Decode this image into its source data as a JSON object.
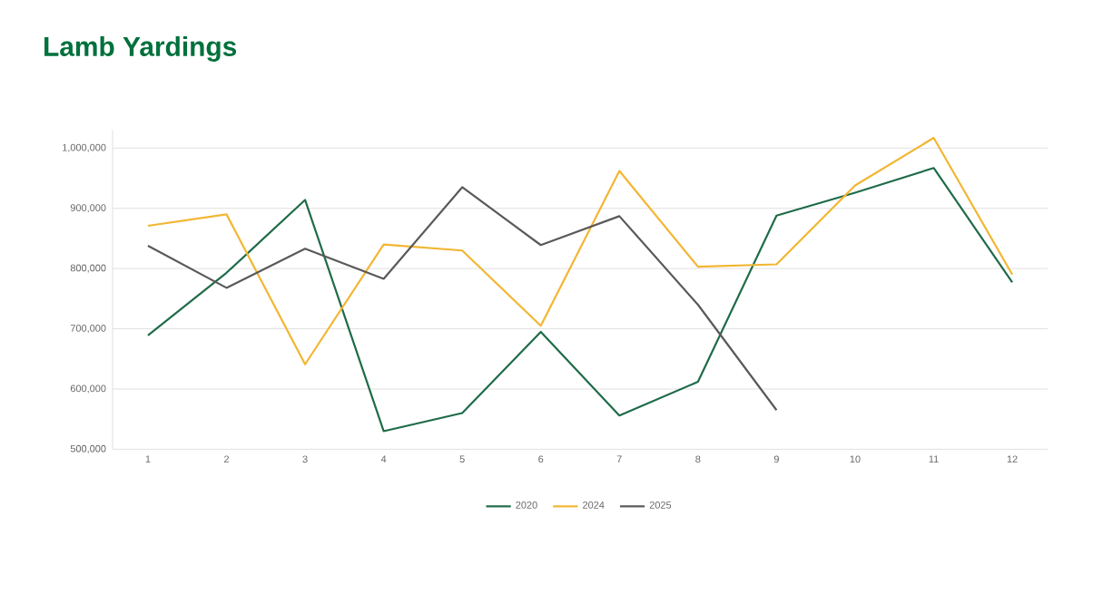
{
  "chart_data": {
    "type": "line",
    "title": "Lamb Yardings",
    "categories": [
      "1",
      "2",
      "3",
      "4",
      "5",
      "6",
      "7",
      "8",
      "9",
      "10",
      "11",
      "12"
    ],
    "series": [
      {
        "name": "2020",
        "color": "#1e6b48",
        "values": [
          689000,
          793000,
          914000,
          530000,
          560000,
          695000,
          556000,
          612000,
          888000,
          926000,
          967000,
          777000
        ]
      },
      {
        "name": "2024",
        "color": "#f2b632",
        "values": [
          871000,
          890000,
          641000,
          840000,
          830000,
          705000,
          962000,
          803000,
          807000,
          938000,
          1017000,
          790000
        ]
      },
      {
        "name": "2025",
        "color": "#595959",
        "values": [
          838000,
          768000,
          833000,
          783000,
          935000,
          839000,
          887000,
          740000,
          565000,
          null,
          null,
          null
        ]
      }
    ],
    "ylim": [
      500000,
      1030000
    ],
    "yticks": [
      {
        "value": 500000,
        "label": "500,000"
      },
      {
        "value": 600000,
        "label": "600,000"
      },
      {
        "value": 700000,
        "label": "700,000"
      },
      {
        "value": 800000,
        "label": "800,000"
      },
      {
        "value": 900000,
        "label": "900,000"
      },
      {
        "value": 1000000,
        "label": "1,000,000"
      }
    ],
    "grid": "y",
    "legend": "bottom",
    "marker": "none",
    "line_style": "solid"
  }
}
